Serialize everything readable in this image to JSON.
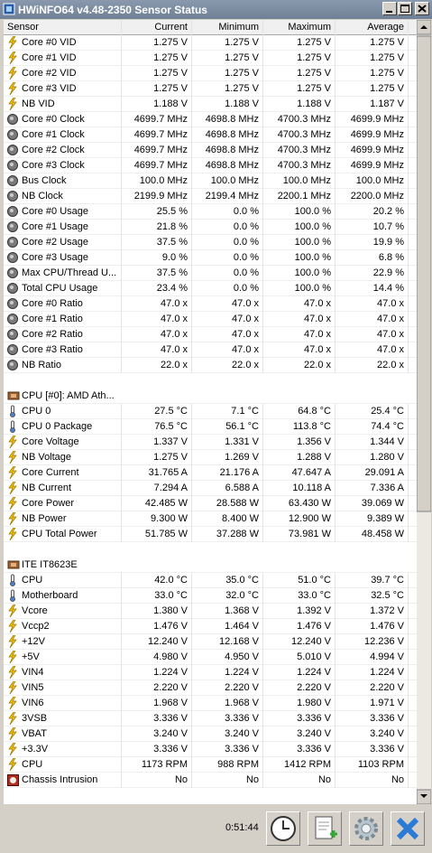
{
  "window": {
    "title": "HWiNFO64 v4.48-2350 Sensor Status"
  },
  "table": {
    "columns": [
      "Sensor",
      "Current",
      "Minimum",
      "Maximum",
      "Average"
    ],
    "sections": [
      {
        "rows": [
          [
            "Core #0 VID",
            "1.275 V",
            "1.275 V",
            "1.275 V",
            "1.275 V"
          ],
          [
            "Core #1 VID",
            "1.275 V",
            "1.275 V",
            "1.275 V",
            "1.275 V"
          ],
          [
            "Core #2 VID",
            "1.275 V",
            "1.275 V",
            "1.275 V",
            "1.275 V"
          ],
          [
            "Core #3 VID",
            "1.275 V",
            "1.275 V",
            "1.275 V",
            "1.275 V"
          ],
          [
            "NB VID",
            "1.188 V",
            "1.188 V",
            "1.188 V",
            "1.187 V"
          ],
          [
            "Core #0 Clock",
            "4699.7 MHz",
            "4698.8 MHz",
            "4700.3 MHz",
            "4699.9 MHz"
          ],
          [
            "Core #1 Clock",
            "4699.7 MHz",
            "4698.8 MHz",
            "4700.3 MHz",
            "4699.9 MHz"
          ],
          [
            "Core #2 Clock",
            "4699.7 MHz",
            "4698.8 MHz",
            "4700.3 MHz",
            "4699.9 MHz"
          ],
          [
            "Core #3 Clock",
            "4699.7 MHz",
            "4698.8 MHz",
            "4700.3 MHz",
            "4699.9 MHz"
          ],
          [
            "Bus Clock",
            "100.0 MHz",
            "100.0 MHz",
            "100.0 MHz",
            "100.0 MHz"
          ],
          [
            "NB Clock",
            "2199.9 MHz",
            "2199.4 MHz",
            "2200.1 MHz",
            "2200.0 MHz"
          ],
          [
            "Core #0 Usage",
            "25.5 %",
            "0.0 %",
            "100.0 %",
            "20.2 %"
          ],
          [
            "Core #1 Usage",
            "21.8 %",
            "0.0 %",
            "100.0 %",
            "10.7 %"
          ],
          [
            "Core #2 Usage",
            "37.5 %",
            "0.0 %",
            "100.0 %",
            "19.9 %"
          ],
          [
            "Core #3 Usage",
            "9.0 %",
            "0.0 %",
            "100.0 %",
            "6.8 %"
          ],
          [
            "Max CPU/Thread U...",
            "37.5 %",
            "0.0 %",
            "100.0 %",
            "22.9 %"
          ],
          [
            "Total CPU Usage",
            "23.4 %",
            "0.0 %",
            "100.0 %",
            "14.4 %"
          ],
          [
            "Core #0 Ratio",
            "47.0 x",
            "47.0 x",
            "47.0 x",
            "47.0 x"
          ],
          [
            "Core #1 Ratio",
            "47.0 x",
            "47.0 x",
            "47.0 x",
            "47.0 x"
          ],
          [
            "Core #2 Ratio",
            "47.0 x",
            "47.0 x",
            "47.0 x",
            "47.0 x"
          ],
          [
            "Core #3 Ratio",
            "47.0 x",
            "47.0 x",
            "47.0 x",
            "47.0 x"
          ],
          [
            "NB Ratio",
            "22.0 x",
            "22.0 x",
            "22.0 x",
            "22.0 x"
          ]
        ]
      },
      {
        "label": "CPU [#0]: AMD Ath...",
        "rows": [
          [
            "CPU 0",
            "27.5 °C",
            "7.1 °C",
            "64.8 °C",
            "25.4 °C"
          ],
          [
            "CPU 0 Package",
            "76.5 °C",
            "56.1 °C",
            "113.8 °C",
            "74.4 °C"
          ],
          [
            "Core Voltage",
            "1.337 V",
            "1.331 V",
            "1.356 V",
            "1.344 V"
          ],
          [
            "NB Voltage",
            "1.275 V",
            "1.269 V",
            "1.288 V",
            "1.280 V"
          ],
          [
            "Core Current",
            "31.765 A",
            "21.176 A",
            "47.647 A",
            "29.091 A"
          ],
          [
            "NB Current",
            "7.294 A",
            "6.588 A",
            "10.118 A",
            "7.336 A"
          ],
          [
            "Core Power",
            "42.485 W",
            "28.588 W",
            "63.430 W",
            "39.069 W"
          ],
          [
            "NB Power",
            "9.300 W",
            "8.400 W",
            "12.900 W",
            "9.389 W"
          ],
          [
            "CPU Total Power",
            "51.785 W",
            "37.288 W",
            "73.981 W",
            "48.458 W"
          ]
        ]
      },
      {
        "label": "ITE IT8623E",
        "rows": [
          [
            "CPU",
            "42.0 °C",
            "35.0 °C",
            "51.0 °C",
            "39.7 °C"
          ],
          [
            "Motherboard",
            "33.0 °C",
            "32.0 °C",
            "33.0 °C",
            "32.5 °C"
          ],
          [
            "Vcore",
            "1.380 V",
            "1.368 V",
            "1.392 V",
            "1.372 V"
          ],
          [
            "Vccp2",
            "1.476 V",
            "1.464 V",
            "1.476 V",
            "1.476 V"
          ],
          [
            "+12V",
            "12.240 V",
            "12.168 V",
            "12.240 V",
            "12.236 V"
          ],
          [
            "+5V",
            "4.980 V",
            "4.950 V",
            "5.010 V",
            "4.994 V"
          ],
          [
            "VIN4",
            "1.224 V",
            "1.224 V",
            "1.224 V",
            "1.224 V"
          ],
          [
            "VIN5",
            "2.220 V",
            "2.220 V",
            "2.220 V",
            "2.220 V"
          ],
          [
            "VIN6",
            "1.968 V",
            "1.968 V",
            "1.980 V",
            "1.971 V"
          ],
          [
            "3VSB",
            "3.336 V",
            "3.336 V",
            "3.336 V",
            "3.336 V"
          ],
          [
            "VBAT",
            "3.240 V",
            "3.240 V",
            "3.240 V",
            "3.240 V"
          ],
          [
            "+3.3V",
            "3.336 V",
            "3.336 V",
            "3.336 V",
            "3.336 V"
          ],
          [
            "CPU",
            "1173 RPM",
            "988 RPM",
            "1412 RPM",
            "1103 RPM"
          ],
          [
            "Chassis Intrusion",
            "No",
            "No",
            "No",
            "No"
          ]
        ]
      }
    ]
  },
  "footer": {
    "time": "0:51:44"
  }
}
